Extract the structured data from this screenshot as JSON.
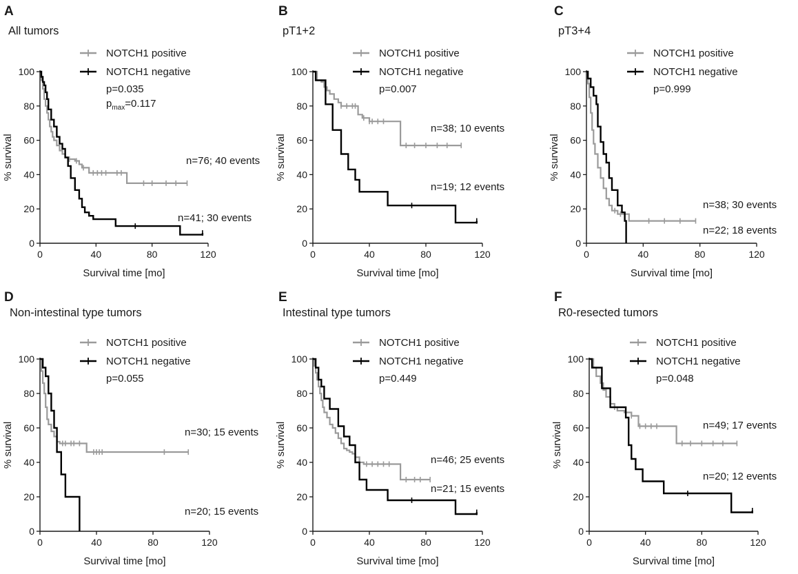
{
  "figure": {
    "xlabel": "Survival time [mo]",
    "ylabel": "% survival",
    "colors": {
      "positive": "#9a9a9a",
      "negative": "#000000"
    }
  },
  "chart_data": [
    {
      "letter": "A",
      "title": "All tumors",
      "type": "line",
      "xlim": [
        0,
        120
      ],
      "xticks": [
        0,
        40,
        80,
        120
      ],
      "ylim": [
        0,
        100
      ],
      "yticks": [
        0,
        20,
        40,
        60,
        80,
        100
      ],
      "legend": [
        "NOTCH1 positive",
        "NOTCH1 negative"
      ],
      "pvalue": "p=0.035",
      "pmax": {
        "p": "p",
        "sub": "max",
        "value": "=0.117"
      },
      "counts": {
        "positive": "n=76; 40 events",
        "negative": "n=41; 30 events"
      },
      "series": [
        {
          "name": "NOTCH1 positive",
          "x": [
            0,
            1,
            2,
            3,
            4,
            5,
            6,
            7,
            8,
            9,
            10,
            12,
            14,
            16,
            18,
            20,
            25,
            28,
            30,
            35,
            62,
            105
          ],
          "y": [
            100,
            95,
            90,
            84,
            80,
            76,
            72,
            68,
            65,
            62,
            60,
            57,
            54,
            52,
            50,
            49,
            48,
            46,
            44,
            41,
            35,
            35
          ],
          "censor_x": [
            21,
            26,
            31,
            38,
            41,
            44,
            47,
            55,
            58,
            74,
            80,
            90,
            97,
            105
          ]
        },
        {
          "name": "NOTCH1 negative",
          "x": [
            0,
            1,
            2,
            3,
            4,
            5,
            6,
            8,
            10,
            12,
            14,
            16,
            18,
            20,
            22,
            25,
            28,
            30,
            32,
            35,
            38,
            54,
            100,
            105,
            116
          ],
          "y": [
            100,
            97,
            94,
            92,
            88,
            84,
            78,
            72,
            68,
            62,
            58,
            55,
            50,
            45,
            38,
            31,
            26,
            21,
            18,
            16,
            14,
            10,
            5,
            5,
            6
          ],
          "censor_x": [
            68,
            116
          ]
        }
      ]
    },
    {
      "letter": "B",
      "title": "pT1+2",
      "type": "line",
      "xlim": [
        0,
        120
      ],
      "xticks": [
        0,
        40,
        80,
        120
      ],
      "ylim": [
        0,
        100
      ],
      "yticks": [
        0,
        20,
        40,
        60,
        80,
        100
      ],
      "legend": [
        "NOTCH1 positive",
        "NOTCH1 negative"
      ],
      "pvalue": "p=0.007",
      "counts": {
        "positive": "n=38; 10 events",
        "negative": "n=19; 12 events"
      },
      "series": [
        {
          "name": "NOTCH1 positive",
          "x": [
            0,
            3,
            6,
            8,
            10,
            12,
            15,
            18,
            20,
            22,
            25,
            32,
            35,
            40,
            62,
            105
          ],
          "y": [
            100,
            95,
            94,
            91,
            89,
            87,
            84,
            82,
            80,
            80,
            80,
            75,
            73,
            71,
            57,
            57
          ],
          "censor_x": [
            20,
            24,
            28,
            30,
            36,
            40,
            42,
            46,
            50,
            66,
            72,
            80,
            88,
            95,
            105
          ]
        },
        {
          "name": "NOTCH1 negative",
          "x": [
            0,
            2,
            5,
            9,
            14,
            20,
            25,
            30,
            33,
            37,
            53,
            101,
            116
          ],
          "y": [
            100,
            95,
            95,
            81,
            66,
            52,
            43,
            37,
            30,
            30,
            22,
            12,
            13
          ],
          "censor_x": [
            70,
            116
          ]
        }
      ]
    },
    {
      "letter": "C",
      "title": "pT3+4",
      "type": "line",
      "xlim": [
        0,
        120
      ],
      "xticks": [
        0,
        40,
        80,
        120
      ],
      "ylim": [
        0,
        100
      ],
      "yticks": [
        0,
        20,
        40,
        60,
        80,
        100
      ],
      "legend": [
        "NOTCH1 positive",
        "NOTCH1 negative"
      ],
      "pvalue": "p=0.999",
      "counts": {
        "positive": "n=38; 30 events",
        "negative": "n=22; 18 events"
      },
      "series": [
        {
          "name": "NOTCH1 positive",
          "x": [
            0,
            1,
            2,
            3,
            4,
            5,
            6,
            8,
            10,
            12,
            14,
            16,
            18,
            22,
            30,
            77
          ],
          "y": [
            100,
            93,
            85,
            76,
            66,
            58,
            52,
            44,
            38,
            32,
            26,
            22,
            19,
            17,
            13,
            13
          ],
          "censor_x": [
            20,
            24,
            44,
            55,
            66,
            77
          ]
        },
        {
          "name": "NOTCH1 negative",
          "x": [
            0,
            1,
            3,
            5,
            7,
            8,
            10,
            12,
            14,
            16,
            18,
            22,
            25,
            27,
            28
          ],
          "y": [
            100,
            96,
            91,
            86,
            81,
            68,
            59,
            52,
            47,
            38,
            31,
            22,
            18,
            13,
            0
          ],
          "censor_x": []
        }
      ]
    },
    {
      "letter": "D",
      "title": "Non-intestinal type tumors",
      "type": "line",
      "xlim": [
        0,
        120
      ],
      "xticks": [
        0,
        40,
        80,
        120
      ],
      "ylim": [
        0,
        100
      ],
      "yticks": [
        0,
        20,
        40,
        60,
        80,
        100
      ],
      "legend": [
        "NOTCH1 positive",
        "NOTCH1 negative"
      ],
      "pvalue": "p=0.055",
      "counts": {
        "positive": "n=30; 15 events",
        "negative": "n=20; 15 events"
      },
      "series": [
        {
          "name": "NOTCH1 positive",
          "x": [
            0,
            1,
            2,
            3,
            4,
            5,
            6,
            8,
            10,
            12,
            14,
            33,
            105
          ],
          "y": [
            100,
            93,
            86,
            80,
            72,
            65,
            62,
            58,
            55,
            52,
            51,
            46,
            46
          ],
          "censor_x": [
            16,
            18,
            22,
            24,
            28,
            38,
            40,
            42,
            44,
            88,
            105
          ]
        },
        {
          "name": "NOTCH1 negative",
          "x": [
            0,
            2,
            4,
            6,
            8,
            10,
            12,
            15,
            18,
            22,
            26,
            28
          ],
          "y": [
            100,
            95,
            90,
            80,
            70,
            60,
            46,
            33,
            20,
            20,
            20,
            0
          ],
          "censor_x": []
        }
      ]
    },
    {
      "letter": "E",
      "title": "Intestinal type tumors",
      "type": "line",
      "xlim": [
        0,
        120
      ],
      "xticks": [
        0,
        40,
        80,
        120
      ],
      "ylim": [
        0,
        100
      ],
      "yticks": [
        0,
        20,
        40,
        60,
        80,
        100
      ],
      "legend": [
        "NOTCH1 positive",
        "NOTCH1 negative"
      ],
      "pvalue": "p=0.449",
      "counts": {
        "positive": "n=46; 25 events",
        "negative": "n=21; 15 events"
      },
      "series": [
        {
          "name": "NOTCH1 positive",
          "x": [
            0,
            1,
            2,
            3,
            4,
            5,
            6,
            7,
            8,
            10,
            12,
            14,
            16,
            18,
            20,
            22,
            24,
            26,
            28,
            30,
            33,
            36,
            62,
            83
          ],
          "y": [
            100,
            96,
            92,
            88,
            84,
            80,
            76,
            72,
            69,
            66,
            62,
            60,
            57,
            54,
            51,
            48,
            47,
            46,
            45,
            43,
            40,
            39,
            30,
            30
          ],
          "censor_x": [
            38,
            42,
            46,
            50,
            54,
            66,
            72,
            76,
            83
          ]
        },
        {
          "name": "NOTCH1 negative",
          "x": [
            0,
            2,
            4,
            6,
            8,
            12,
            18,
            22,
            26,
            30,
            33,
            38,
            53,
            101,
            116
          ],
          "y": [
            100,
            95,
            88,
            84,
            77,
            71,
            61,
            55,
            50,
            40,
            30,
            24,
            18,
            10,
            11
          ],
          "censor_x": [
            70,
            116
          ]
        }
      ]
    },
    {
      "letter": "F",
      "title": "R0-resected tumors",
      "type": "line",
      "xlim": [
        0,
        120
      ],
      "xticks": [
        0,
        40,
        80,
        120
      ],
      "ylim": [
        0,
        100
      ],
      "yticks": [
        0,
        20,
        40,
        60,
        80,
        100
      ],
      "legend": [
        "NOTCH1 positive",
        "NOTCH1 negative"
      ],
      "pvalue": "p=0.048",
      "counts": {
        "positive": "n=49; 17 events",
        "negative": "n=20; 12 events"
      },
      "series": [
        {
          "name": "NOTCH1 positive",
          "x": [
            0,
            3,
            5,
            8,
            10,
            12,
            15,
            18,
            20,
            25,
            30,
            35,
            62,
            105
          ],
          "y": [
            100,
            95,
            90,
            86,
            82,
            78,
            74,
            72,
            70,
            69,
            67,
            61,
            51,
            51
          ],
          "censor_x": [
            18,
            26,
            30,
            36,
            40,
            44,
            48,
            66,
            72,
            80,
            88,
            95,
            105
          ]
        },
        {
          "name": "NOTCH1 negative",
          "x": [
            0,
            2,
            5,
            9,
            15,
            22,
            26,
            28,
            30,
            33,
            38,
            53,
            101,
            116
          ],
          "y": [
            100,
            95,
            95,
            83,
            72,
            72,
            66,
            50,
            42,
            36,
            29,
            22,
            11,
            12
          ],
          "censor_x": [
            70,
            116
          ]
        }
      ]
    }
  ]
}
